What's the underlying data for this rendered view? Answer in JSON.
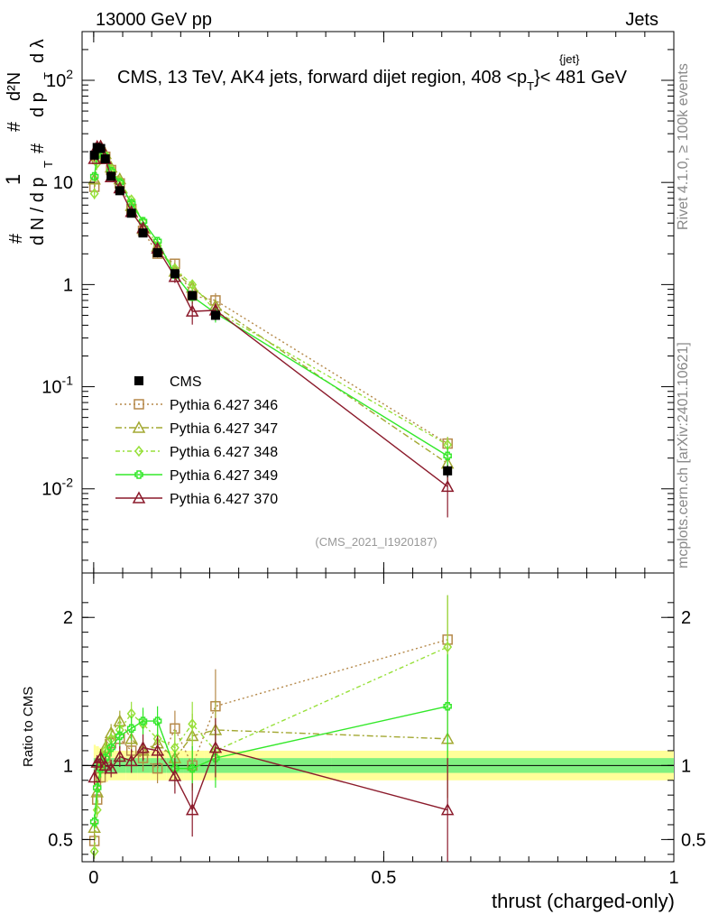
{
  "header": {
    "energy": "13000 GeV pp",
    "category": "Jets"
  },
  "title": "CMS, 13 TeV, AK4 jets, forward dijet region, 408 <p",
  "title_sup": "{jet}",
  "title_sub": "T",
  "title_end": "}< 481 GeV",
  "side_text": {
    "rivet": "Rivet 4.1.0, ≥ 100k events",
    "mcplots": "mcplots.cern.ch [arXiv:2401.10621]"
  },
  "analysis_id": "(CMS_2021_I1920187)",
  "ylabel_main": {
    "num_frac": "1",
    "den_frac": "d N / d p",
    "sub_T1": "T",
    "num_d2": "d²N",
    "den_d2": "d p",
    "sub_T2": "T",
    "den_lambda": "d λ",
    "hash1": "#",
    "hash2": "#",
    "hash3": "#"
  },
  "ylabel_ratio": "Ratio to CMS",
  "xlabel": "thrust (charged-only)",
  "legend": [
    {
      "label": "CMS",
      "color": "#000000",
      "marker": "square-filled",
      "dash": ""
    },
    {
      "label": "Pythia 6.427 346",
      "color": "#b5894a",
      "marker": "square-open",
      "dash": "2,3"
    },
    {
      "label": "Pythia 6.427 347",
      "color": "#a3a832",
      "marker": "triangle-open",
      "dash": "7,3,2,3"
    },
    {
      "label": "Pythia 6.427 348",
      "color": "#97e03a",
      "marker": "diamond-open",
      "dash": "5,3,2,3"
    },
    {
      "label": "Pythia 6.427 349",
      "color": "#33e82a",
      "marker": "cross",
      "dash": ""
    },
    {
      "label": "Pythia 6.427 370",
      "color": "#8b1a2b",
      "marker": "triangle-open",
      "dash": ""
    }
  ],
  "chart_data": {
    "type": "line",
    "x": [
      0.0012,
      0.006,
      0.012,
      0.02,
      0.03,
      0.045,
      0.065,
      0.085,
      0.11,
      0.14,
      0.17,
      0.21,
      0.61
    ],
    "xlim": [
      -0.02,
      1.0
    ],
    "ylim_main_log": [
      0.0015,
      300
    ],
    "ylim_ratio": [
      0.35,
      2.3
    ],
    "x_ticks": [
      "0",
      "0.5",
      "1"
    ],
    "main_y_ticks": [
      "10^-2",
      "10^-1",
      "1",
      "10",
      "10^2"
    ],
    "ratio_y_ticks": [
      "0.5",
      "1",
      "2"
    ],
    "reference": {
      "name": "CMS",
      "values": [
        18.5,
        22.0,
        21.5,
        17.0,
        11.5,
        8.3,
        5.0,
        3.2,
        2.05,
        1.28,
        0.78,
        0.5,
        0.015
      ],
      "errors": [
        1.2,
        1.5,
        1.4,
        1.1,
        0.7,
        0.5,
        0.3,
        0.2,
        0.13,
        0.09,
        0.06,
        0.05,
        0.002
      ],
      "band_inner": [
        0.05,
        0.05,
        0.05,
        0.05,
        0.05,
        0.05,
        0.05,
        0.05,
        0.05,
        0.05,
        0.05,
        0.05,
        0.05
      ],
      "band_outer": [
        0.14,
        0.13,
        0.12,
        0.11,
        0.1,
        0.1,
        0.1,
        0.1,
        0.1,
        0.1,
        0.1,
        0.1,
        0.1
      ]
    },
    "series": [
      {
        "name": "Pythia 6.427 346",
        "ratio": [
          0.49,
          0.77,
          0.92,
          1.05,
          1.15,
          1.18,
          1.1,
          1.05,
          0.98,
          1.25,
          1.0,
          1.4,
          1.85
        ],
        "ratio_err": [
          0.05,
          0.05,
          0.06,
          0.06,
          0.06,
          0.07,
          0.08,
          0.09,
          0.1,
          0.12,
          0.15,
          0.25,
          0.3
        ]
      },
      {
        "name": "Pythia 6.427 347",
        "ratio": [
          0.58,
          0.82,
          1.05,
          1.12,
          1.22,
          1.3,
          1.18,
          1.1,
          1.15,
          1.05,
          1.2,
          1.24,
          1.18
        ],
        "ratio_err": [
          0.05,
          0.05,
          0.06,
          0.06,
          0.06,
          0.07,
          0.08,
          0.09,
          0.1,
          0.12,
          0.15,
          0.2,
          0.4
        ]
      },
      {
        "name": "Pythia 6.427 348",
        "ratio": [
          0.42,
          0.7,
          1.0,
          1.1,
          1.18,
          1.24,
          1.35,
          1.28,
          1.18,
          1.12,
          1.28,
          1.1,
          1.8
        ],
        "ratio_err": [
          0.05,
          0.05,
          0.06,
          0.06,
          0.06,
          0.07,
          0.08,
          0.09,
          0.1,
          0.12,
          0.15,
          0.2,
          0.35
        ]
      },
      {
        "name": "Pythia 6.427 349",
        "ratio": [
          0.62,
          0.85,
          0.98,
          1.05,
          1.12,
          1.2,
          1.25,
          1.3,
          1.3,
          0.98,
          0.98,
          1.05,
          1.4
        ],
        "ratio_err": [
          0.05,
          0.05,
          0.06,
          0.06,
          0.06,
          0.07,
          0.08,
          0.09,
          0.1,
          0.12,
          0.15,
          0.2,
          0.35
        ]
      },
      {
        "name": "Pythia 6.427 370",
        "ratio": [
          0.92,
          1.02,
          1.05,
          1.0,
          0.98,
          1.06,
          1.03,
          1.12,
          1.1,
          0.93,
          0.7,
          1.12,
          0.7
        ],
        "ratio_err": [
          0.05,
          0.05,
          0.06,
          0.06,
          0.06,
          0.07,
          0.08,
          0.09,
          0.1,
          0.12,
          0.18,
          0.2,
          0.35
        ]
      }
    ]
  }
}
